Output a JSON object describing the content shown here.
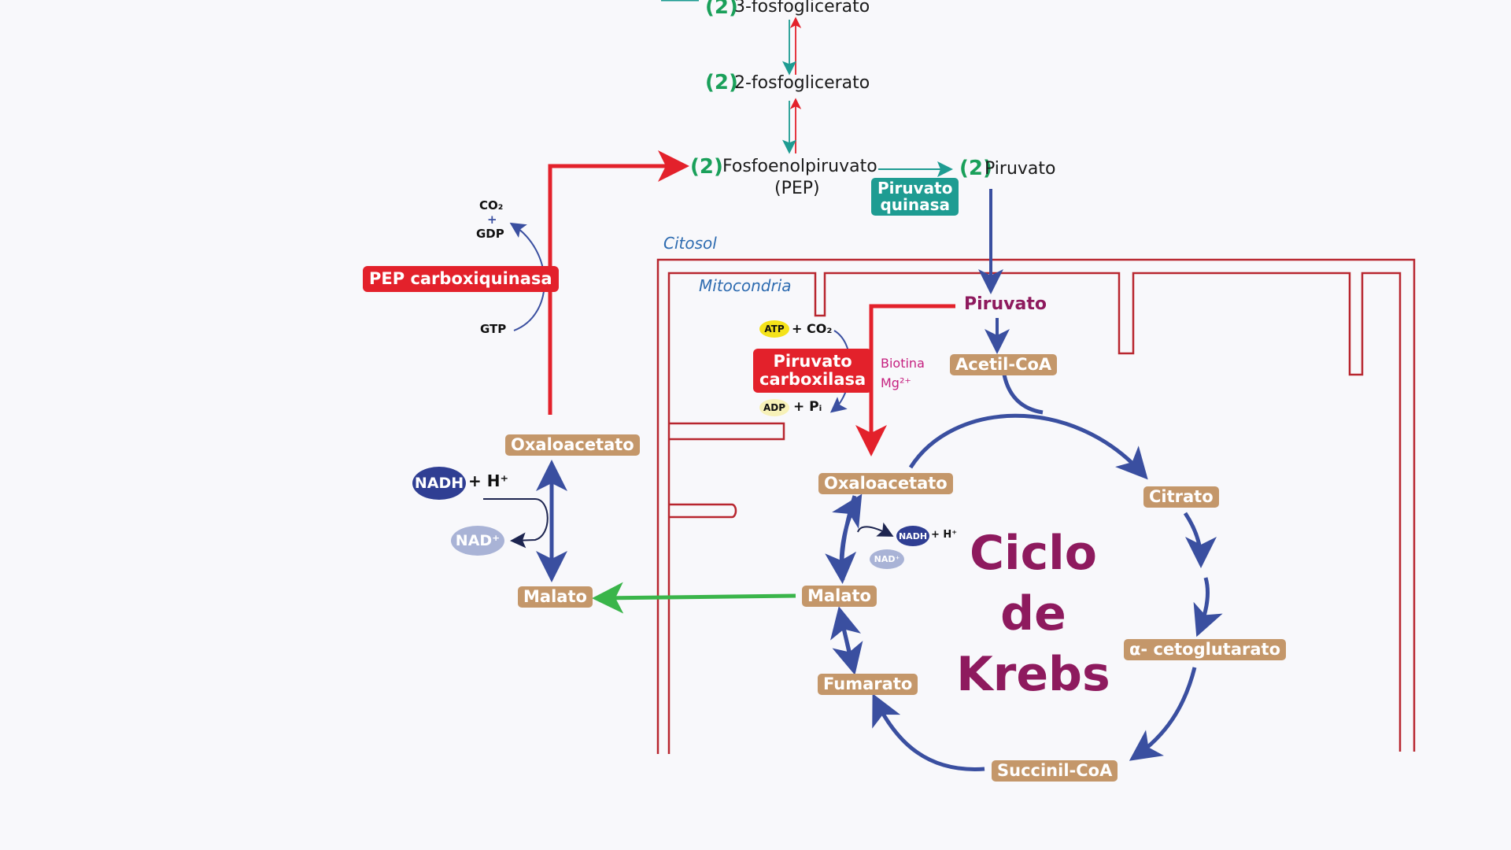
{
  "glycolysis": {
    "count_3pg": "(2)",
    "label_3pg": "3-fosfoglicerato",
    "count_2pg": "(2)",
    "label_2pg": "2-fosfoglicerato",
    "count_pep": "(2)",
    "label_pep_line1": "Fosfoenolpiruvato",
    "label_pep_line2": "(PEP)",
    "count_pyr": "(2)",
    "label_pyr": "Piruvato",
    "pyruvate_kinase_line1": "Piruvato",
    "pyruvate_kinase_line2": "quinasa"
  },
  "cytosol_side": {
    "compartment_label": "Citosol",
    "co2": "CO₂",
    "plus": "+",
    "gdp": "GDP",
    "gtp": "GTP",
    "pepck": "PEP carboxiquinasa",
    "oxaloacetate": "Oxaloacetato",
    "malate": "Malato",
    "nadh": "NADH",
    "plus_h": "+ H⁺",
    "nad": "NAD⁺"
  },
  "mitochondria": {
    "compartment_label": "Mitocondria",
    "pyruvate": "Piruvato",
    "atp": "ATP",
    "plus_co2": "+ CO₂",
    "pc_line1": "Piruvato",
    "pc_line2": "carboxilasa",
    "adp": "ADP",
    "plus_pi": "+  Pᵢ",
    "biotin": "Biotina",
    "mg": "Mg²⁺",
    "acetyl_coa": "Acetil-CoA"
  },
  "krebs": {
    "title_line1": "Ciclo",
    "title_line2": "de",
    "title_line3": "Krebs",
    "oxaloacetate": "Oxaloacetato",
    "citrate": "Citrato",
    "alpha_kg": "α- cetoglutarato",
    "succinyl_coa": "Succinil-CoA",
    "fumarate": "Fumarato",
    "malate": "Malato",
    "nadh": "NADH",
    "plus_h": "+ H⁺",
    "nad": "NAD⁺"
  },
  "colors": {
    "red_arrow": "#e3212b",
    "blue_arrow": "#3a4fa0",
    "green_arrow": "#3ab54a",
    "teal": "#1e9c92",
    "membrane": "#b8262f",
    "pill": "#c4976a",
    "krebs_title": "#8e1a5e"
  }
}
